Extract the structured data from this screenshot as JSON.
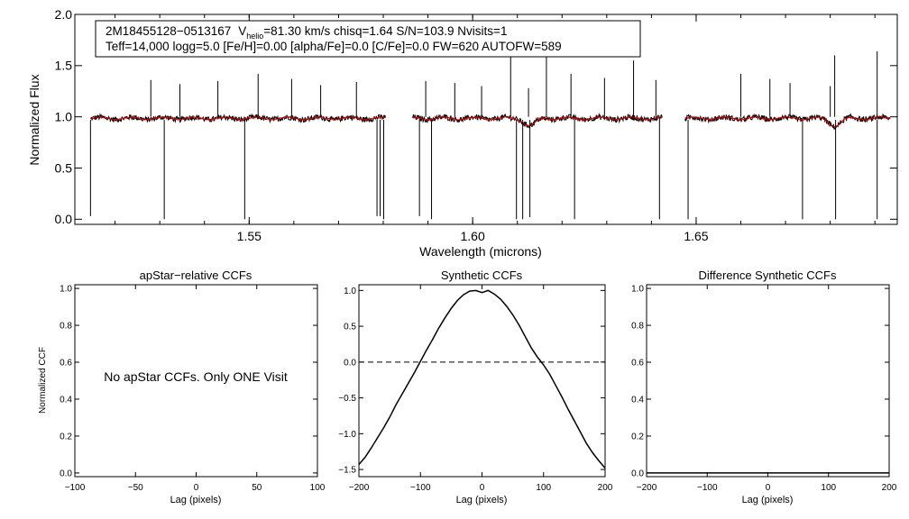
{
  "chart_data": [
    {
      "type": "line",
      "id": "spectrum",
      "title": "",
      "info_box": {
        "line1_star": "2M18455128−0513167",
        "line1_v": "V",
        "line1_sub": "helio",
        "line1_rest": "=81.30 km/s  chisq=1.64  S/N=103.9  Nvisits=1",
        "line2": "Teff=14,000 logg=5.0 [Fe/H]=0.00 [alpha/Fe]=0.0 [C/Fe]=0.0 FW=620 AUTOFW=589"
      },
      "xlabel": "Wavelength (microns)",
      "ylabel": "Normalized Flux",
      "xlim": [
        1.511,
        1.695
      ],
      "ylim": [
        -0.05,
        2.0
      ],
      "yticks": [
        "0.0",
        "0.5",
        "1.0",
        "1.5",
        "2.0"
      ],
      "xticks": [
        "1.55",
        "1.60",
        "1.65"
      ],
      "segments": [
        [
          1.5145,
          1.5805
        ],
        [
          1.5865,
          1.6425
        ],
        [
          1.6475,
          1.6935
        ]
      ],
      "series": [
        {
          "name": "observed",
          "color": "#000000"
        },
        {
          "name": "model",
          "color": "#cc0000"
        }
      ],
      "emission_lines": [
        [
          1.528,
          1.36
        ],
        [
          1.5345,
          1.32
        ],
        [
          1.543,
          1.35
        ],
        [
          1.552,
          1.42
        ],
        [
          1.5595,
          1.37
        ],
        [
          1.566,
          1.31
        ],
        [
          1.574,
          1.34
        ],
        [
          1.5895,
          1.35
        ],
        [
          1.596,
          1.33
        ],
        [
          1.602,
          1.3
        ],
        [
          1.6085,
          1.62
        ],
        [
          1.6125,
          1.28
        ],
        [
          1.6165,
          1.6
        ],
        [
          1.622,
          1.42
        ],
        [
          1.6295,
          1.38
        ],
        [
          1.636,
          1.55
        ],
        [
          1.641,
          1.36
        ],
        [
          1.66,
          1.42
        ],
        [
          1.6665,
          1.37
        ],
        [
          1.671,
          1.33
        ],
        [
          1.68,
          1.3
        ],
        [
          1.681,
          1.6
        ],
        [
          1.6905,
          1.64
        ]
      ],
      "absorption_lines": [
        [
          1.5145,
          0.03
        ],
        [
          1.531,
          0.0
        ],
        [
          1.549,
          0.0
        ],
        [
          1.5786,
          0.03
        ],
        [
          1.5793,
          0.03
        ],
        [
          1.5801,
          0.0
        ],
        [
          1.5881,
          0.03
        ],
        [
          1.5908,
          0.0
        ],
        [
          1.6098,
          0.0
        ],
        [
          1.6112,
          0.0
        ],
        [
          1.6128,
          0.02
        ],
        [
          1.6228,
          0.0
        ],
        [
          1.6418,
          0.0
        ],
        [
          1.6482,
          0.0
        ],
        [
          1.6738,
          0.0
        ],
        [
          1.6812,
          0.0
        ],
        [
          1.6905,
          0.0
        ]
      ],
      "dips": [
        [
          1.6128,
          0.93
        ],
        [
          1.681,
          0.93
        ]
      ]
    },
    {
      "type": "line",
      "id": "apstar_ccf",
      "title": "apStar−relative CCFs",
      "xlabel": "Lag (pixels)",
      "ylabel": "Normalized CCF",
      "xlim": [
        -100,
        100
      ],
      "ylim": [
        -0.02,
        1.02
      ],
      "xticks": [
        "−100",
        "−50",
        "0",
        "50",
        "100"
      ],
      "yticks": [
        "0.0",
        "0.2",
        "0.4",
        "0.6",
        "0.8",
        "1.0"
      ],
      "annotation": "No apStar CCFs.  Only ONE Visit",
      "series": []
    },
    {
      "type": "line",
      "id": "synthetic_ccf",
      "title": "Synthetic CCFs",
      "xlabel": "Lag (pixels)",
      "ylabel": "",
      "xlim": [
        -200,
        200
      ],
      "ylim": [
        -1.6,
        1.08
      ],
      "xticks": [
        "−200",
        "−100",
        "0",
        "100",
        "200"
      ],
      "yticks": [
        "−1.5",
        "−1.0",
        "−0.5",
        "0.0",
        "0.5",
        "1.0"
      ],
      "zero_line": 0.0,
      "series": [
        {
          "name": "synthetic",
          "x": [
            -200,
            -190,
            -180,
            -170,
            -160,
            -150,
            -140,
            -130,
            -120,
            -110,
            -100,
            -90,
            -80,
            -70,
            -60,
            -50,
            -40,
            -30,
            -20,
            -10,
            0,
            10,
            20,
            30,
            40,
            50,
            60,
            70,
            80,
            90,
            100,
            110,
            120,
            130,
            140,
            150,
            160,
            170,
            180,
            190,
            200
          ],
          "y": [
            -1.43,
            -1.33,
            -1.2,
            -1.06,
            -0.92,
            -0.77,
            -0.6,
            -0.45,
            -0.3,
            -0.15,
            0.01,
            0.17,
            0.32,
            0.48,
            0.62,
            0.75,
            0.86,
            0.94,
            0.99,
            1.0,
            0.97,
            1.0,
            0.95,
            0.88,
            0.78,
            0.66,
            0.52,
            0.36,
            0.2,
            0.07,
            -0.04,
            -0.17,
            -0.33,
            -0.49,
            -0.66,
            -0.82,
            -0.98,
            -1.14,
            -1.27,
            -1.38,
            -1.48
          ]
        }
      ]
    },
    {
      "type": "line",
      "id": "difference_ccf",
      "title": "Difference Synthetic CCFs",
      "xlabel": "Lag (pixels)",
      "ylabel": "",
      "xlim": [
        -200,
        200
      ],
      "ylim": [
        -0.02,
        1.02
      ],
      "xticks": [
        "−200",
        "−100",
        "0",
        "100",
        "200"
      ],
      "yticks": [
        "0.0",
        "0.2",
        "0.4",
        "0.6",
        "0.8",
        "1.0"
      ],
      "series": [
        {
          "name": "difference",
          "x": [
            -200,
            200
          ],
          "y": [
            0.0,
            0.0
          ]
        }
      ]
    }
  ]
}
